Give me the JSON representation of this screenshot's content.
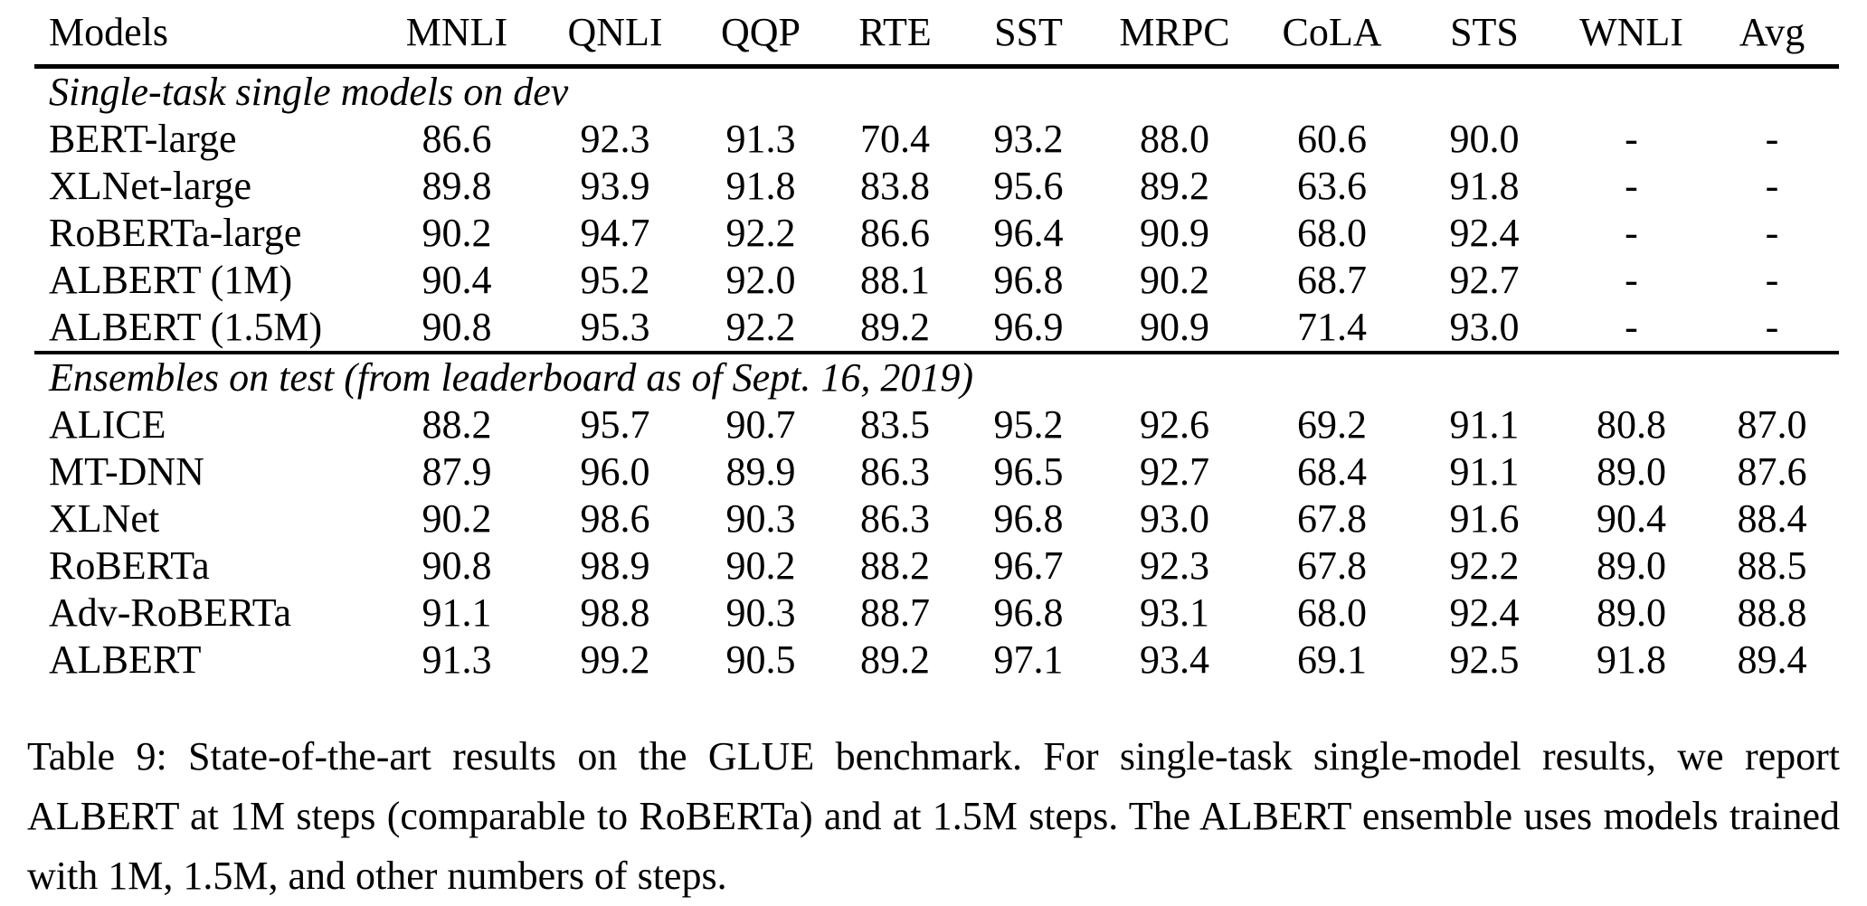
{
  "table": {
    "columns": [
      "Models",
      "MNLI",
      "QNLI",
      "QQP",
      "RTE",
      "SST",
      "MRPC",
      "CoLA",
      "STS",
      "WNLI",
      "Avg"
    ],
    "sections": [
      {
        "label": "Single-task single models on dev",
        "rows": [
          {
            "model": "BERT-large",
            "values": [
              "86.6",
              "92.3",
              "91.3",
              "70.4",
              "93.2",
              "88.0",
              "60.6",
              "90.0",
              "-",
              "-"
            ],
            "bold": []
          },
          {
            "model": "XLNet-large",
            "values": [
              "89.8",
              "93.9",
              "91.8",
              "83.8",
              "95.6",
              "89.2",
              "63.6",
              "91.8",
              "-",
              "-"
            ],
            "bold": []
          },
          {
            "model": "RoBERTa-large",
            "values": [
              "90.2",
              "94.7",
              "92.2",
              "86.6",
              "96.4",
              "90.9",
              "68.0",
              "92.4",
              "-",
              "-"
            ],
            "bold": [
              2,
              5
            ]
          },
          {
            "model": "ALBERT (1M)",
            "values": [
              "90.4",
              "95.2",
              "92.0",
              "88.1",
              "96.8",
              "90.2",
              "68.7",
              "92.7",
              "-",
              "-"
            ],
            "bold": []
          },
          {
            "model": "ALBERT (1.5M)",
            "values": [
              "90.8",
              "95.3",
              "92.2",
              "89.2",
              "96.9",
              "90.9",
              "71.4",
              "93.0",
              "-",
              "-"
            ],
            "bold": [
              0,
              1,
              2,
              3,
              4,
              5,
              6,
              7
            ]
          }
        ]
      },
      {
        "label": "Ensembles on test (from leaderboard as of Sept. 16, 2019)",
        "rows": [
          {
            "model": "ALICE",
            "values": [
              "88.2",
              "95.7",
              "90.7",
              "83.5",
              "95.2",
              "92.6",
              "69.2",
              "91.1",
              "80.8",
              "87.0"
            ],
            "bold": [
              2,
              6
            ]
          },
          {
            "model": "MT-DNN",
            "values": [
              "87.9",
              "96.0",
              "89.9",
              "86.3",
              "96.5",
              "92.7",
              "68.4",
              "91.1",
              "89.0",
              "87.6"
            ],
            "bold": []
          },
          {
            "model": "XLNet",
            "values": [
              "90.2",
              "98.6",
              "90.3",
              "86.3",
              "96.8",
              "93.0",
              "67.8",
              "91.6",
              "90.4",
              "88.4"
            ],
            "bold": []
          },
          {
            "model": "RoBERTa",
            "values": [
              "90.8",
              "98.9",
              "90.2",
              "88.2",
              "96.7",
              "92.3",
              "67.8",
              "92.2",
              "89.0",
              "88.5"
            ],
            "bold": []
          },
          {
            "model": "Adv-RoBERTa",
            "values": [
              "91.1",
              "98.8",
              "90.3",
              "88.7",
              "96.8",
              "93.1",
              "68.0",
              "92.4",
              "89.0",
              "88.8"
            ],
            "bold": []
          },
          {
            "model": "ALBERT",
            "values": [
              "91.3",
              "99.2",
              "90.5",
              "89.2",
              "97.1",
              "93.4",
              "69.1",
              "92.5",
              "91.8",
              "89.4"
            ],
            "bold": [
              0,
              1,
              3,
              4,
              5,
              7,
              8,
              9
            ]
          }
        ]
      }
    ]
  },
  "caption": "Table 9: State-of-the-art results on the GLUE benchmark. For single-task single-model results, we report ALBERT at 1M steps (comparable to RoBERTa) and at 1.5M steps. The ALBERT ensemble uses models trained with 1M, 1.5M, and other numbers of steps."
}
